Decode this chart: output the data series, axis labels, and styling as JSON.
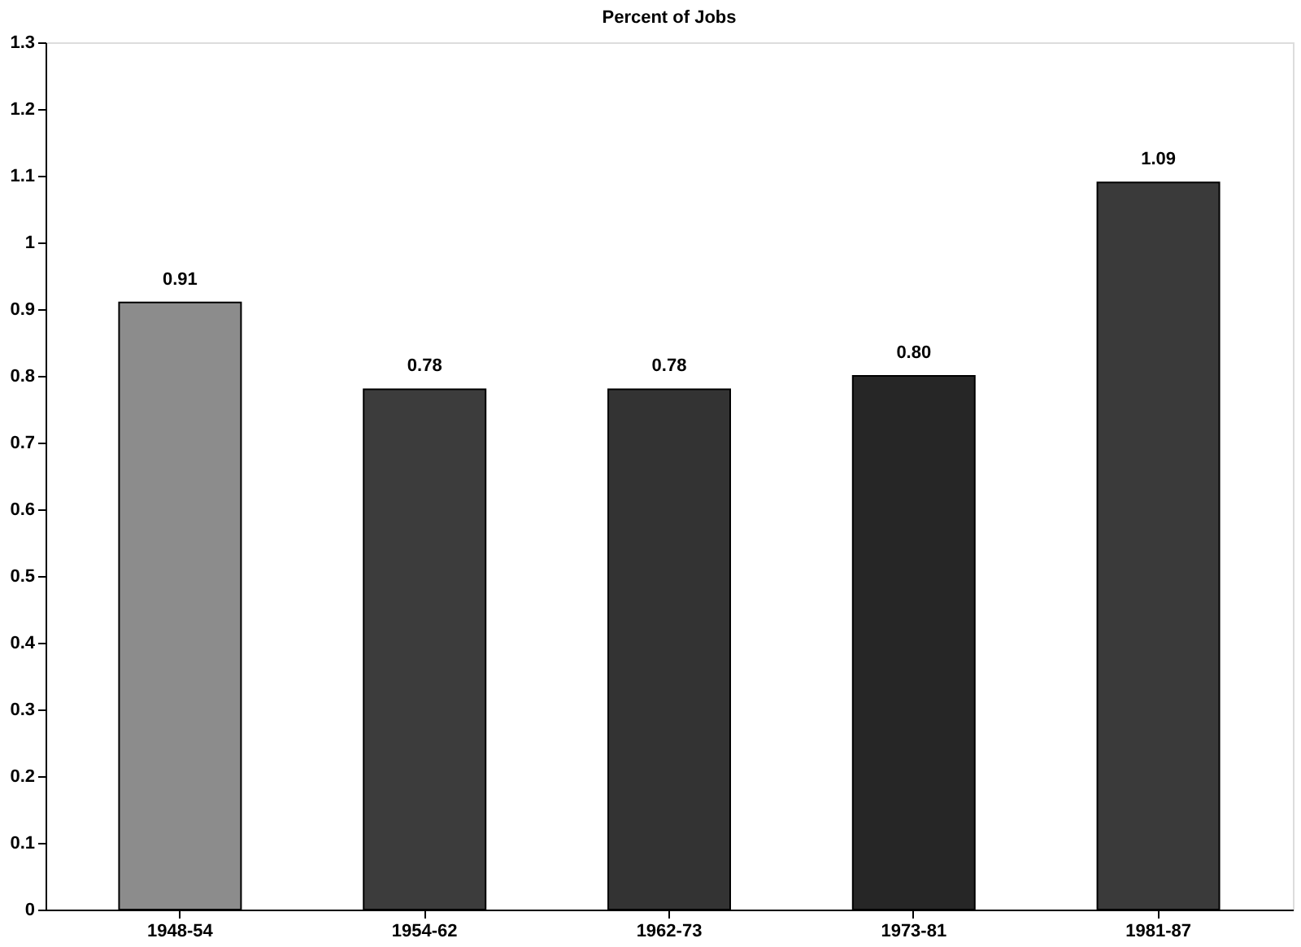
{
  "chart_data": {
    "type": "bar",
    "title": "Percent of Jobs",
    "categories": [
      "1948-54",
      "1954-62",
      "1962-73",
      "1973-81",
      "1981-87"
    ],
    "values": [
      0.91,
      0.78,
      0.78,
      0.8,
      1.09
    ],
    "colors": [
      "#8c8c8c",
      "#3c3c3c",
      "#333333",
      "#262626",
      "#3a3a3a"
    ],
    "value_labels": [
      "0.91",
      "0.78",
      "0.78",
      "0.80",
      "1.09"
    ],
    "ylim": [
      0,
      1.3
    ],
    "yticks": [
      0,
      0.1,
      0.2,
      0.3,
      0.4,
      0.5,
      0.6,
      0.7,
      0.8,
      0.9,
      1,
      1.1,
      1.2,
      1.3
    ],
    "grid": false
  }
}
